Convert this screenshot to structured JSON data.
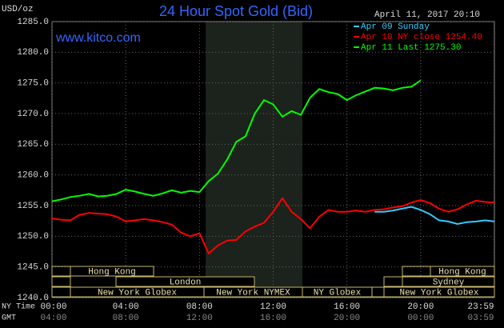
{
  "chart_data": {
    "type": "line",
    "title": "24 Hour Spot Gold (Bid)",
    "unit_label": "USD/oz",
    "site": "www.kitco.com",
    "timestamp": "April 11, 2017 20:10",
    "x_row_labels": [
      "NY Time",
      "GMT"
    ],
    "x": [
      0,
      0.5,
      1,
      1.5,
      2,
      2.5,
      3,
      3.5,
      4,
      4.5,
      5,
      5.5,
      6,
      6.5,
      7,
      7.5,
      8,
      8.5,
      9,
      9.5,
      10,
      10.5,
      11,
      11.5,
      12,
      12.5,
      13,
      13.5,
      14,
      14.5,
      15,
      15.5,
      16,
      16.5,
      17,
      17.5,
      18,
      18.5,
      19,
      19.5,
      20,
      20.5,
      21,
      21.5,
      22,
      22.5,
      23,
      23.5,
      24
    ],
    "xlim": [
      0,
      24
    ],
    "xticks": [
      {
        "value": 0,
        "label": "00:00"
      },
      {
        "value": 4,
        "label": "04:00"
      },
      {
        "value": 8,
        "label": "08:00"
      },
      {
        "value": 12,
        "label": "12:00"
      },
      {
        "value": 16,
        "label": "16:00"
      },
      {
        "value": 20,
        "label": "20:00"
      },
      {
        "value": 23.98,
        "label": "23:59"
      }
    ],
    "gmt_labels": [
      "04:00",
      "08:00",
      "12:00",
      "16:00",
      "20:00",
      "00:00",
      "03:59"
    ],
    "ylim": [
      1240,
      1285
    ],
    "yticks": [
      {
        "value": 1240,
        "label": "1240.0"
      },
      {
        "value": 1245,
        "label": "1245.0"
      },
      {
        "value": 1250,
        "label": "1250.0"
      },
      {
        "value": 1255,
        "label": "1255.0"
      },
      {
        "value": 1260,
        "label": "1260.0"
      },
      {
        "value": 1265,
        "label": "1265.0"
      },
      {
        "value": 1270,
        "label": "1270.0"
      },
      {
        "value": 1275,
        "label": "1275.0"
      },
      {
        "value": 1280,
        "label": "1280.0"
      },
      {
        "value": 1285,
        "label": "1285.0"
      }
    ],
    "grid": true,
    "sessions": [
      "Hong Kong",
      "London",
      "New York Globex",
      "New York NYMEX",
      "NY Globex",
      "Hong Kong",
      "Sydney",
      "New York Globex"
    ],
    "series": [
      {
        "name": "Apr 09 Sunday",
        "color": "#33ccff",
        "values": [
          null,
          null,
          null,
          null,
          null,
          null,
          null,
          null,
          null,
          null,
          null,
          null,
          null,
          null,
          null,
          null,
          null,
          null,
          null,
          null,
          null,
          null,
          null,
          null,
          null,
          null,
          null,
          null,
          null,
          null,
          null,
          null,
          null,
          null,
          null,
          1254.0,
          1254.0,
          1254.2,
          1254.5,
          1254.8,
          1254.3,
          1253.6,
          1252.6,
          1252.4,
          1252.0,
          1252.3,
          1252.4,
          1252.6,
          1252.4
        ]
      },
      {
        "name": "Apr 10 NY close 1254.40",
        "color": "#ff0000",
        "values": [
          1252.9,
          1252.7,
          1252.6,
          1253.5,
          1253.8,
          1253.7,
          1253.6,
          1253.2,
          1252.4,
          1252.6,
          1252.8,
          1252.6,
          1252.3,
          1251.9,
          1250.6,
          1250.0,
          1250.5,
          1247.2,
          1248.5,
          1249.3,
          1249.4,
          1250.8,
          1251.6,
          1252.2,
          1254.0,
          1256.2,
          1254.0,
          1252.8,
          1251.3,
          1253.2,
          1254.3,
          1254.0,
          1254.0,
          1254.2,
          1254.0,
          1254.3,
          1254.4,
          1254.7,
          1254.9,
          1255.5,
          1255.9,
          1255.4,
          1254.5,
          1254.0,
          1254.4,
          1255.2,
          1255.8,
          1255.6,
          1255.5
        ]
      },
      {
        "name": "Apr 11 Last 1275.30",
        "color": "#00ff00",
        "values": [
          1255.7,
          1256.0,
          1256.4,
          1256.6,
          1256.9,
          1256.5,
          1256.6,
          1256.9,
          1257.6,
          1257.3,
          1256.9,
          1256.6,
          1257.0,
          1257.5,
          1257.1,
          1257.4,
          1257.2,
          1259.0,
          1260.2,
          1262.5,
          1265.4,
          1266.3,
          1270.0,
          1272.2,
          1271.5,
          1269.5,
          1270.4,
          1269.8,
          1272.6,
          1274.0,
          1273.5,
          1273.2,
          1272.2,
          1273.0,
          1273.6,
          1274.2,
          1274.1,
          1273.8,
          1274.2,
          1274.4,
          1275.4,
          null,
          null,
          null,
          null,
          null,
          null,
          null,
          null
        ]
      }
    ]
  }
}
